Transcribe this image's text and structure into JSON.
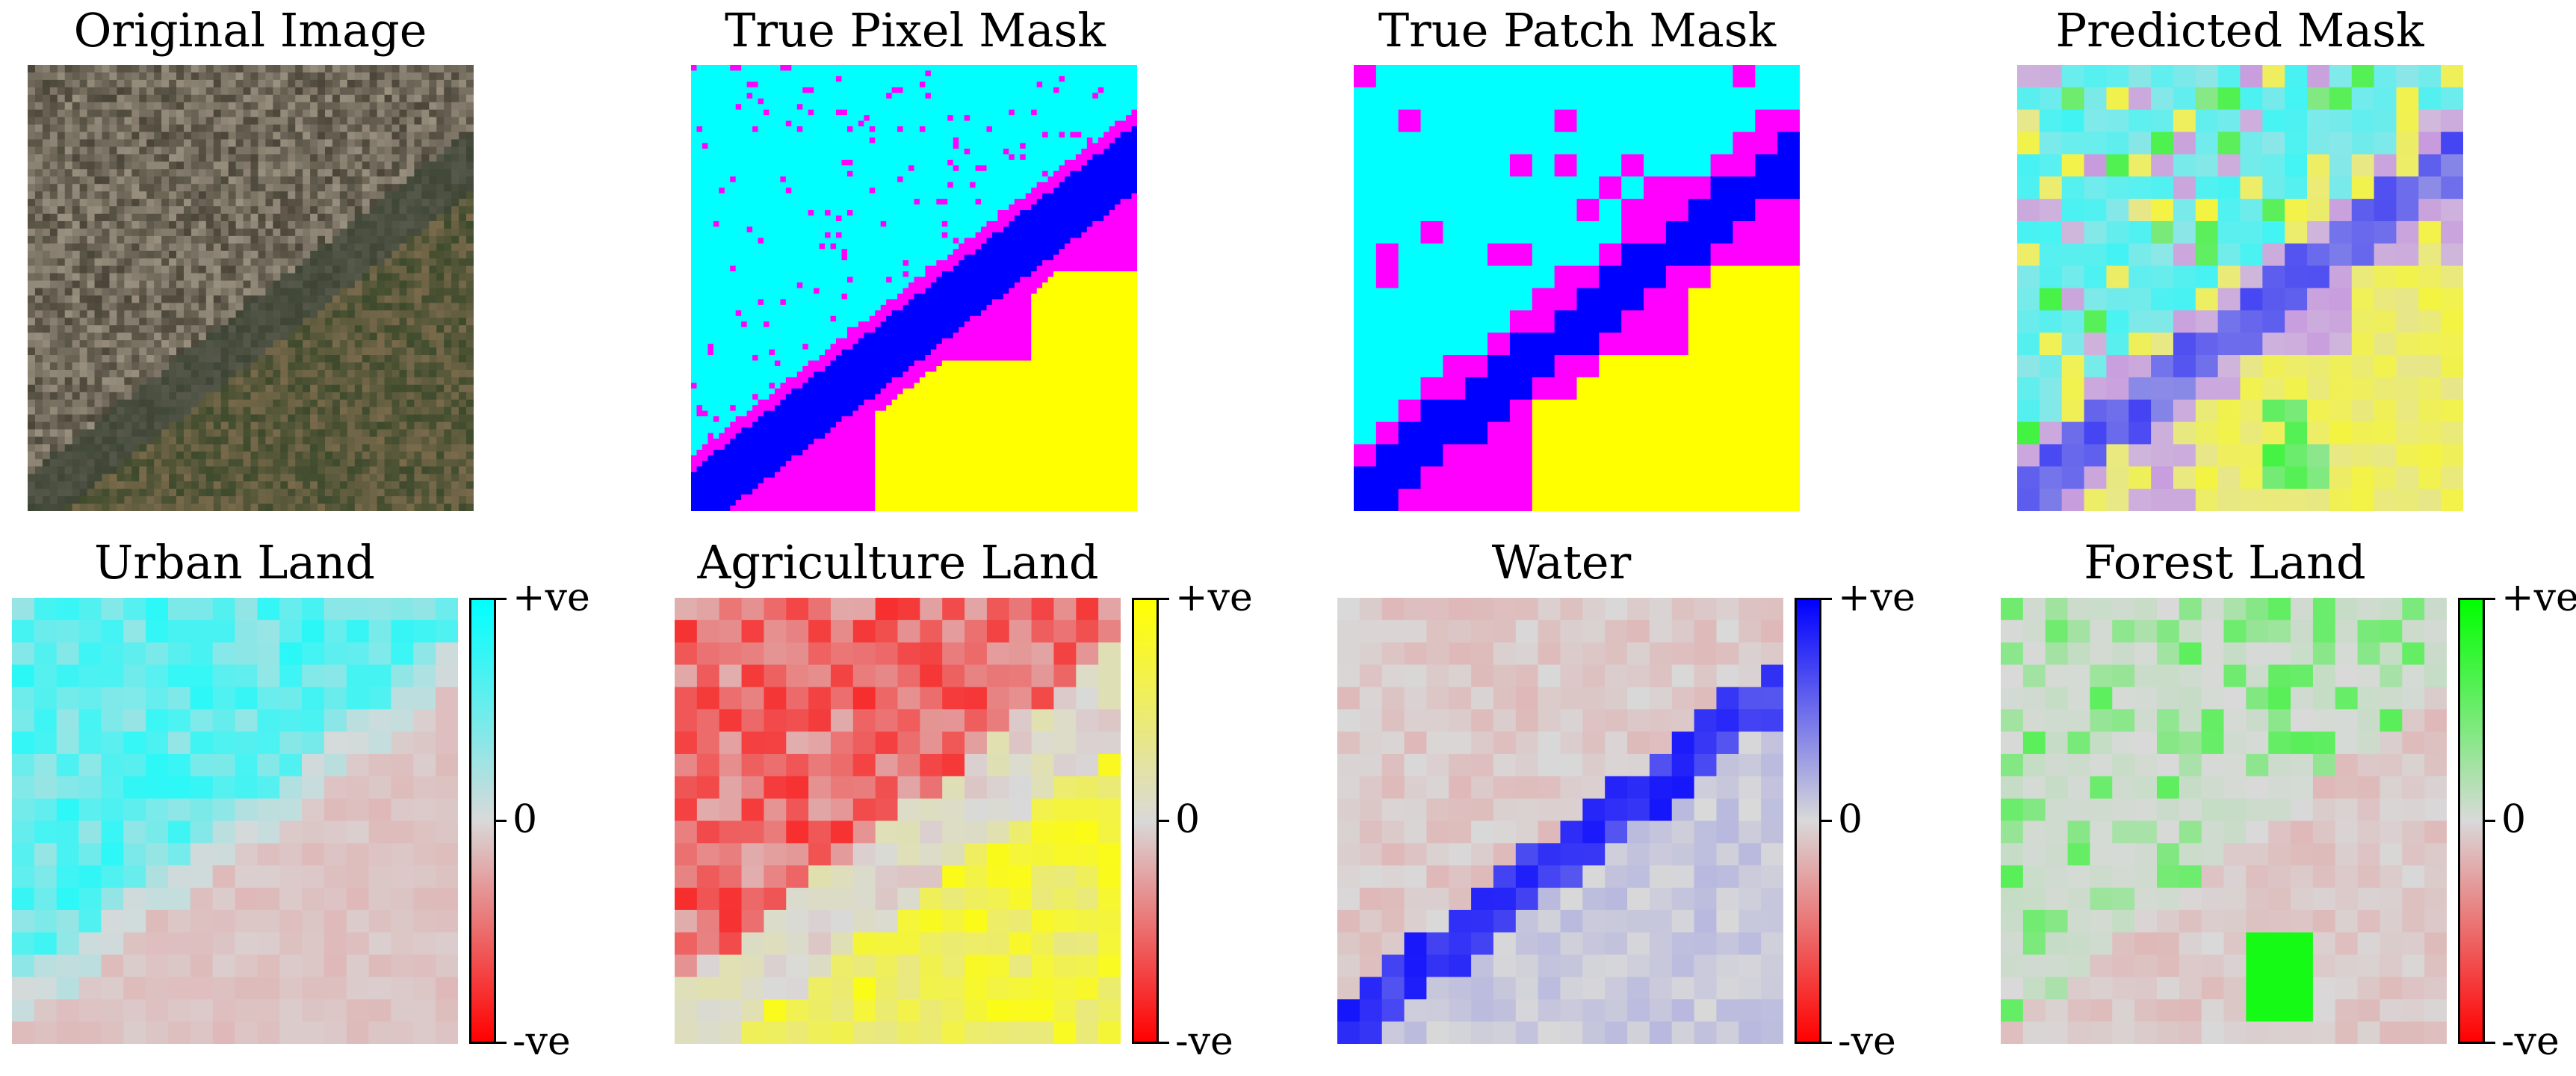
{
  "panels_top": [
    {
      "title": "Original Image"
    },
    {
      "title": "True Pixel Mask"
    },
    {
      "title": "True Patch Mask"
    },
    {
      "title": "Predicted Mask"
    }
  ],
  "panels_bottom": [
    {
      "title": "Urban Land",
      "colorbar": {
        "top": "+ve",
        "mid": "0",
        "bottom": "-ve",
        "color": "#00ffff"
      }
    },
    {
      "title": "Agriculture Land",
      "colorbar": {
        "top": "+ve",
        "mid": "0",
        "bottom": "-ve",
        "color": "#ffff00"
      }
    },
    {
      "title": "Water",
      "colorbar": {
        "top": "+ve",
        "mid": "0",
        "bottom": "-ve",
        "color": "#0000ff"
      }
    },
    {
      "title": "Forest Land",
      "colorbar": {
        "top": "+ve",
        "mid": "0",
        "bottom": "-ve",
        "color": "#00ff00"
      }
    }
  ],
  "class_colors": {
    "urban": "#00ffff",
    "agriculture": "#ffff00",
    "water": "#0000ff",
    "forest": "#00ff00",
    "rangeland": "#ff00ff",
    "negative": "#ff0000",
    "neutral": "#d9d9d9"
  }
}
